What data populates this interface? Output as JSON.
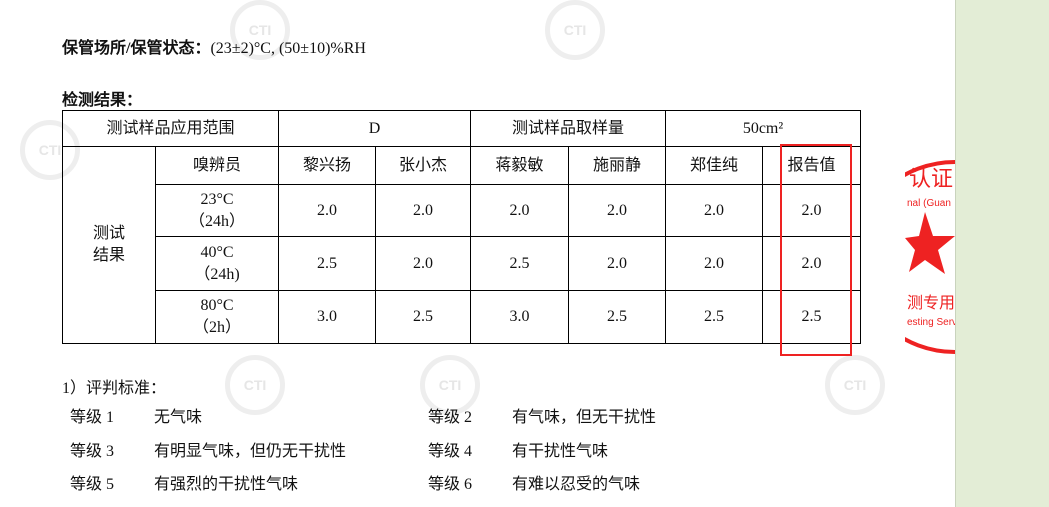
{
  "storage": {
    "label": "保管场所/保管状态：",
    "value": "(23±2)°C, (50±10)%RH"
  },
  "results_title": "检测结果：",
  "table": {
    "header": [
      "测试样品应用范围",
      "D",
      "测试样品取样量",
      "50cm²"
    ],
    "group_label": [
      "测试",
      "结果"
    ],
    "columns": [
      "嗅辨员",
      "黎兴扬",
      "张小杰",
      "蒋毅敏",
      "施丽静",
      "郑佳纯",
      "报告值"
    ],
    "rows": [
      {
        "cond": [
          "23°C",
          "（24h）"
        ],
        "values": [
          "2.0",
          "2.0",
          "2.0",
          "2.0",
          "2.0",
          "2.0"
        ]
      },
      {
        "cond": [
          "40°C",
          "（24h)"
        ],
        "values": [
          "2.5",
          "2.0",
          "2.5",
          "2.0",
          "2.0",
          "2.0"
        ]
      },
      {
        "cond": [
          "80°C",
          "（2h）"
        ],
        "values": [
          "3.0",
          "2.5",
          "3.0",
          "2.5",
          "2.5",
          "2.5"
        ]
      }
    ]
  },
  "criteria_title": "1）评判标准：",
  "grades": [
    {
      "level": "等级 1",
      "desc": "无气味"
    },
    {
      "level": "等级 2",
      "desc": "有气味，但无干扰性"
    },
    {
      "level": "等级 3",
      "desc": "有明显气味，但仍无干扰性"
    },
    {
      "level": "等级 4",
      "desc": "有干扰性气味"
    },
    {
      "level": "等级 5",
      "desc": "有强烈的干扰性气味"
    },
    {
      "level": "等级 6",
      "desc": "有难以忍受的气味"
    }
  ],
  "stamp": {
    "text_cn_top": "认证技",
    "text_en_top": "nal (Guangzhou)",
    "text_cn_bottom": "测专用章",
    "text_en_bottom": "esting Servic"
  },
  "watermark": "CTI",
  "colors": {
    "highlight": "#ee2222",
    "side_panel": "#e3edd6"
  }
}
